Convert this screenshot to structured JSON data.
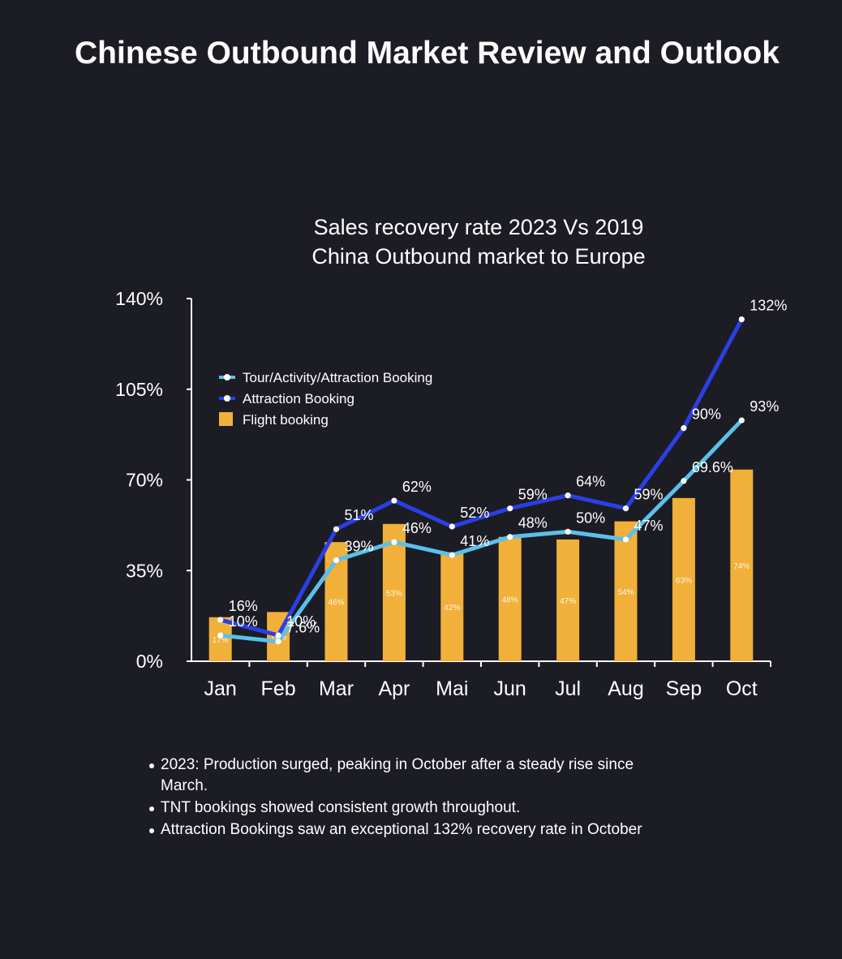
{
  "page": {
    "title": "Chinese Outbound Market Review and Outlook"
  },
  "notes": [
    "2023: Production surged, peaking in October after a steady rise since March.",
    "TNT bookings showed consistent growth throughout.",
    "Attraction Bookings saw an exceptional 132% recovery rate in October"
  ],
  "colors": {
    "background": "#1c1c24",
    "bar": "#f0b03a",
    "tour_line": "#5bc0ea",
    "attraction_line": "#2b3fe6",
    "text": "#ffffff"
  },
  "chart_data": {
    "type": "bar+line",
    "title": "Sales recovery rate 2023 Vs 2019",
    "subtitle": "China Outbound market to Europe",
    "categories": [
      "Jan",
      "Feb",
      "Mar",
      "Apr",
      "Mai",
      "Jun",
      "Jul",
      "Aug",
      "Sep",
      "Oct"
    ],
    "y_ticks": [
      "0%",
      "35%",
      "70%",
      "105%",
      "140%"
    ],
    "ylim": [
      0,
      140
    ],
    "unit": "%",
    "legend_position": "top-left",
    "series": [
      {
        "name": "Tour/Activity/Attraction Booking",
        "type": "line",
        "color": "#5bc0ea",
        "values": [
          10,
          7.6,
          39,
          46,
          41,
          48,
          50,
          47,
          69.6,
          93
        ],
        "labels": [
          "10%",
          "7.6%",
          "39%",
          "46%",
          "41%",
          "48%",
          "50%",
          "47%",
          "69.6%",
          "93%"
        ]
      },
      {
        "name": "Attraction Booking",
        "type": "line",
        "color": "#2b3fe6",
        "values": [
          16,
          10,
          51,
          62,
          52,
          59,
          64,
          59,
          90,
          132
        ],
        "labels": [
          "16%",
          "10%",
          "51%",
          "62%",
          "52%",
          "59%",
          "64%",
          "59%",
          "90%",
          "132%"
        ]
      },
      {
        "name": "Flight booking",
        "type": "bar",
        "color": "#f0b03a",
        "values": [
          17,
          19,
          46,
          53,
          42,
          48,
          47,
          54,
          63,
          74
        ],
        "labels": [
          "17%",
          "19%",
          "46%",
          "53%",
          "42%",
          "48%",
          "47%",
          "54%",
          "63%",
          "74%"
        ]
      }
    ]
  }
}
